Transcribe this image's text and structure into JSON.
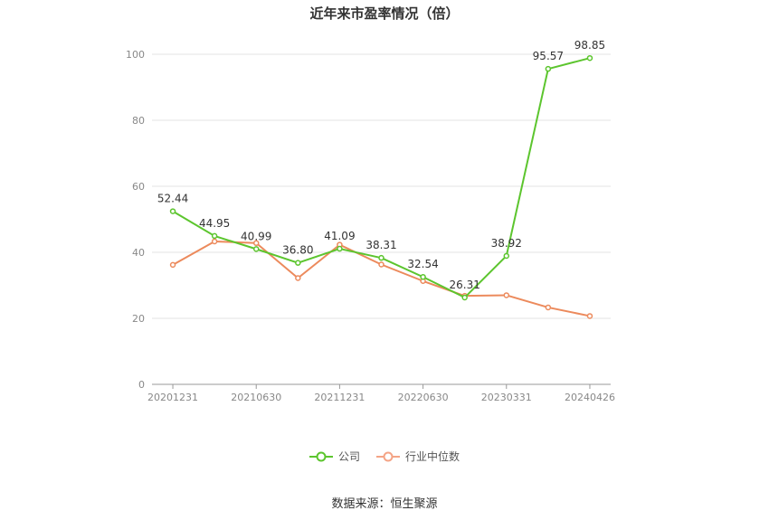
{
  "title": "近年来市盈率情况（倍）",
  "source": "数据来源：恒生聚源",
  "legend": [
    {
      "label": "公司",
      "color": "#5cc52e"
    },
    {
      "label": "行业中位数",
      "color": "#f4a486"
    }
  ],
  "chart_data": {
    "type": "line",
    "title": "近年来市盈率情况（倍）",
    "x": [
      "20201231",
      "20210331",
      "20210630",
      "20210930",
      "20211231",
      "20220331",
      "20220630",
      "20220930",
      "20230331",
      "20230630",
      "20240426"
    ],
    "x_tick_labels": [
      "20201231",
      "20210630",
      "20211231",
      "20220630",
      "20230331",
      "20240426"
    ],
    "ylim": [
      0,
      100
    ],
    "y_ticks": [
      0,
      20,
      40,
      60,
      80,
      100
    ],
    "grid": true,
    "legend_position": "bottom",
    "series": [
      {
        "name": "公司",
        "color": "#5cc52e",
        "values": [
          52.44,
          44.95,
          40.99,
          36.8,
          41.09,
          38.31,
          32.54,
          26.31,
          38.92,
          95.57,
          98.85
        ],
        "labels": [
          "52.44",
          "44.95",
          "40.99",
          "36.80",
          "41.09",
          "38.31",
          "32.54",
          "26.31",
          "38.92",
          "95.57",
          "98.85"
        ]
      },
      {
        "name": "行业中位数",
        "color": "#ec8a5c",
        "values": [
          36.2,
          43.3,
          42.8,
          32.2,
          42.3,
          36.3,
          31.3,
          26.8,
          27.0,
          23.3,
          20.7
        ]
      }
    ]
  }
}
